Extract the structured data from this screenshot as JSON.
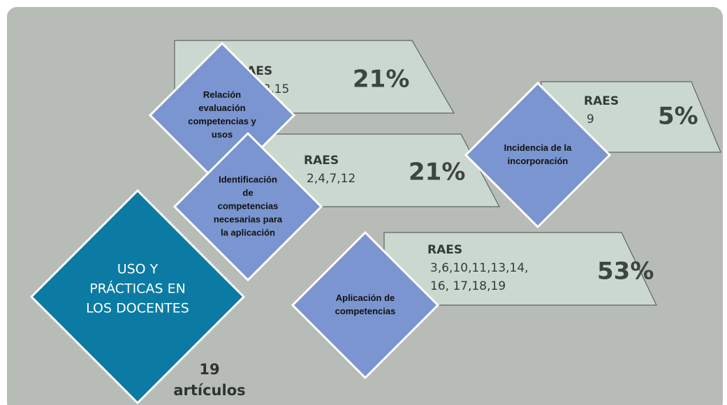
{
  "main": {
    "title_lines": [
      "USO Y",
      "PRÁCTICAS EN",
      "LOS DOCENTES"
    ],
    "count": "19",
    "count_unit": "artículos"
  },
  "items": [
    {
      "label_lines": [
        "Relación",
        "evaluación",
        "competencias y",
        "usos"
      ],
      "raes_title": "RAES",
      "raes_lines": [
        "1,5,8,15"
      ],
      "percent": "21%"
    },
    {
      "label_lines": [
        "Identificación",
        "de",
        "competencias",
        "necesarias para",
        "la aplicación"
      ],
      "raes_title": "RAES",
      "raes_lines": [
        "2,4,7,12"
      ],
      "percent": "21%"
    },
    {
      "label_lines": [
        "Incidencia de la",
        "incorporación"
      ],
      "raes_title": "RAES",
      "raes_lines": [
        "9"
      ],
      "percent": "5%"
    },
    {
      "label_lines": [
        "Aplicación de",
        "competencias"
      ],
      "raes_title": "RAES",
      "raes_lines": [
        "3,6,10,11,13,14,",
        "16, 17,18,19"
      ],
      "percent": "53%"
    }
  ]
}
